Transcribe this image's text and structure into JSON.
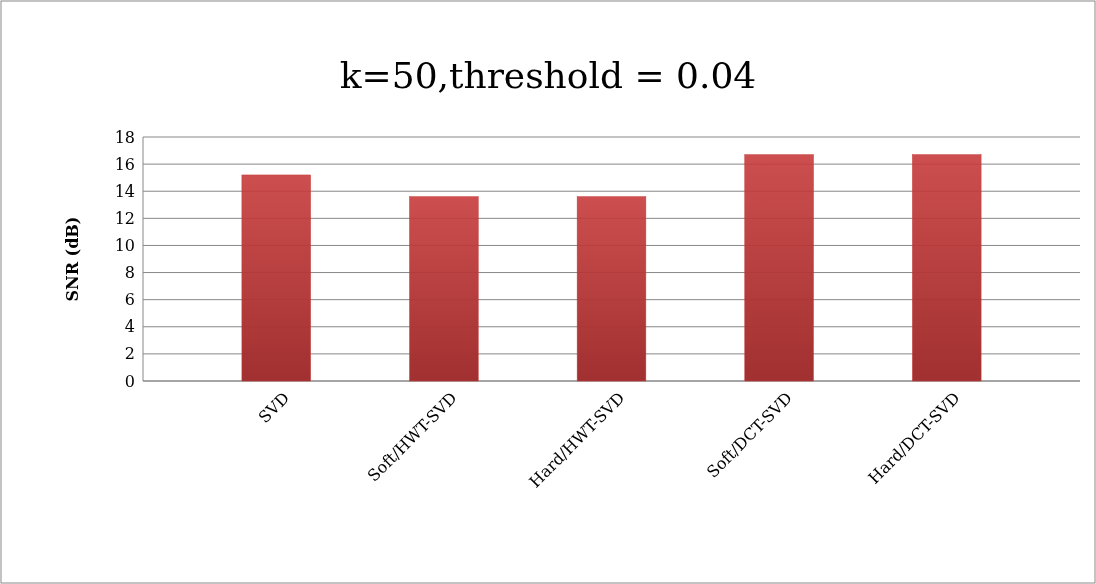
{
  "chart_data": {
    "type": "bar",
    "title": "k=50,threshold = 0.04",
    "ylabel": "SNR (dB)",
    "categories": [
      "SVD",
      "Soft/HWT-SVD",
      "Hard/HWT-SVD",
      "Soft/DCT-SVD",
      "Hard/DCT-SVD"
    ],
    "values": [
      15.2,
      13.6,
      13.6,
      16.7,
      16.7
    ],
    "color": "#c73b3b",
    "ylim": [
      0,
      18
    ],
    "yticks": [
      0,
      2,
      4,
      6,
      8,
      10,
      12,
      14,
      16,
      18
    ],
    "grid": "y"
  }
}
